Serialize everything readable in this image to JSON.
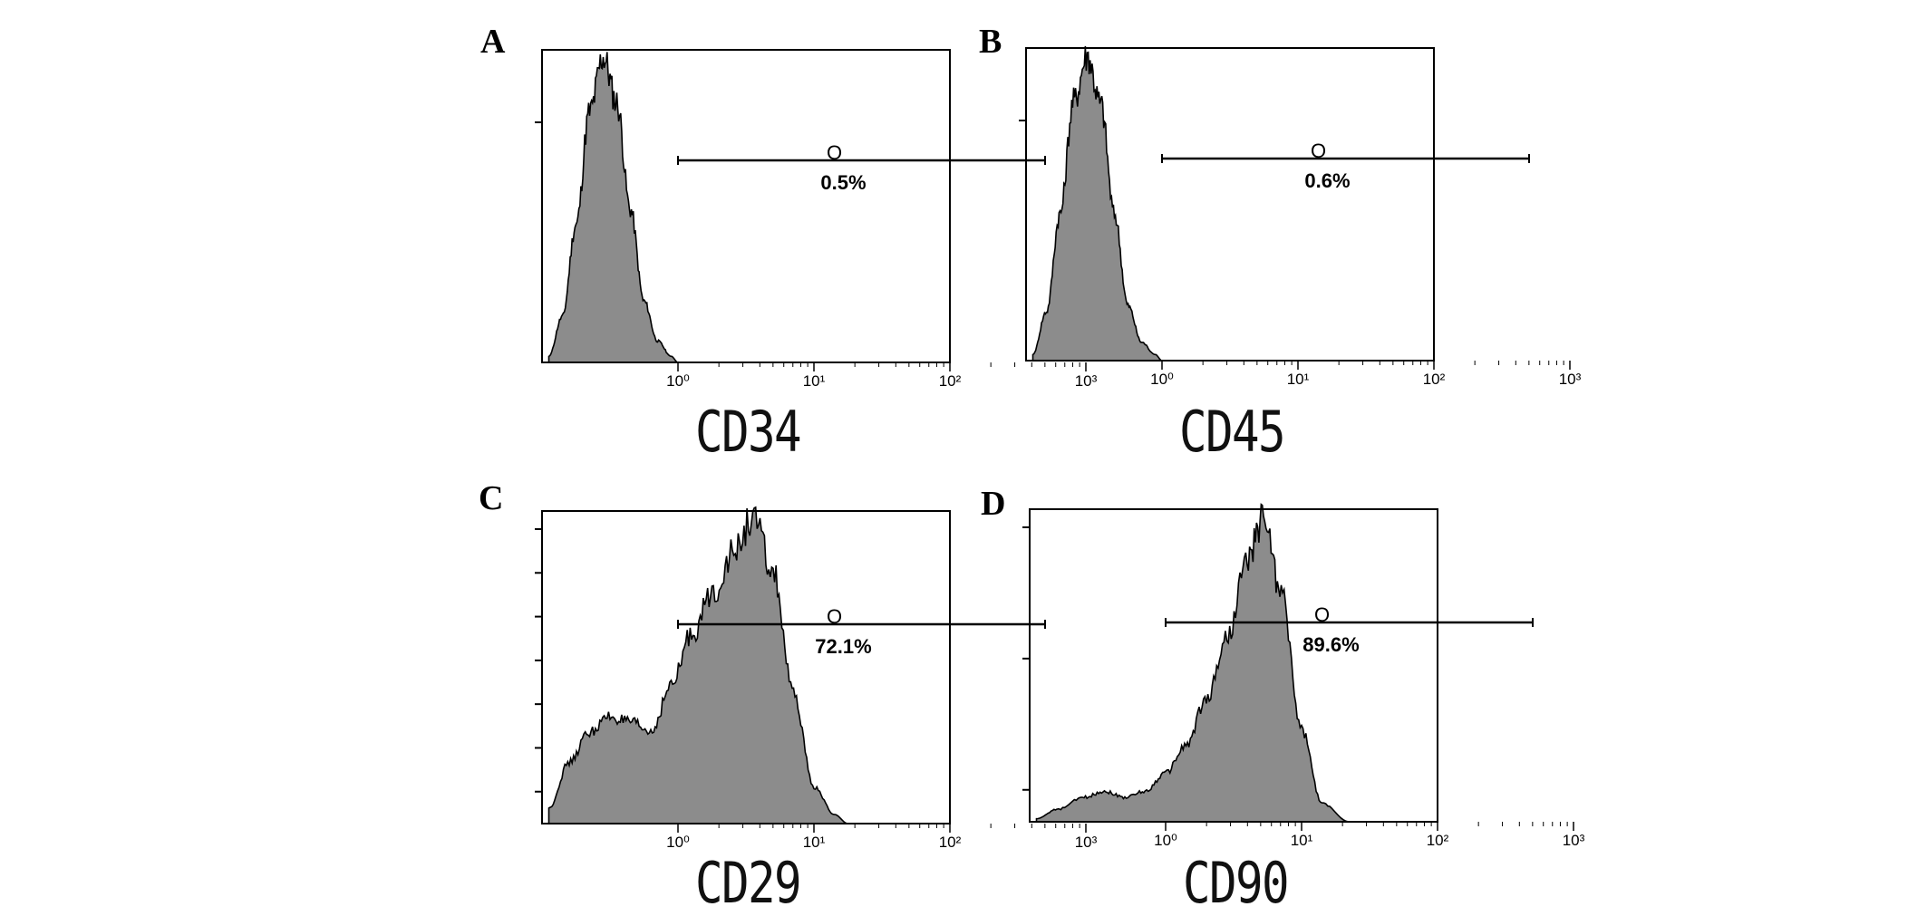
{
  "panels": [
    {
      "letter": "A",
      "xlabel": "CD34",
      "gate_label": "0.5%",
      "gate_marker": "O",
      "x_ticks": [
        "10⁰",
        "10¹",
        "10²",
        "10³"
      ],
      "x_scale": "log",
      "y_tick_count": 1,
      "peak_log": -0.52,
      "gate_range_log": [
        0.0,
        2.7
      ]
    },
    {
      "letter": "B",
      "xlabel": "CD45",
      "gate_label": "0.6%",
      "gate_marker": "O",
      "x_ticks": [
        "10⁰",
        "10¹",
        "10²",
        "10³"
      ],
      "x_scale": "log",
      "y_tick_count": 1,
      "peak_log": -0.52,
      "gate_range_log": [
        0.0,
        2.7
      ]
    },
    {
      "letter": "C",
      "xlabel": "CD29",
      "gate_label": "72.1%",
      "gate_marker": "O",
      "x_ticks": [
        "10⁰",
        "10¹",
        "10²",
        "10³"
      ],
      "x_scale": "log",
      "y_tick_count": 7,
      "peak_log": 0.55,
      "gate_range_log": [
        0.0,
        2.7
      ]
    },
    {
      "letter": "D",
      "xlabel": "CD90",
      "gate_label": "89.6%",
      "gate_marker": "O",
      "x_ticks": [
        "10⁰",
        "10¹",
        "10²",
        "10³"
      ],
      "x_scale": "log",
      "y_tick_count": 3,
      "peak_log": 0.72,
      "gate_range_log": [
        0.0,
        2.7
      ]
    }
  ],
  "chart_data": [
    {
      "type": "area",
      "x_scale": "log",
      "x": [
        -0.95,
        -0.85,
        -0.75,
        -0.65,
        -0.55,
        -0.45,
        -0.35,
        -0.25,
        -0.15,
        -0.05,
        0.0
      ],
      "values": [
        0.02,
        0.15,
        0.45,
        0.82,
        1.0,
        0.85,
        0.5,
        0.2,
        0.07,
        0.02,
        0.0
      ],
      "gate_label": "0.5%",
      "xlabel": "CD34"
    },
    {
      "type": "area",
      "x_scale": "log",
      "x": [
        -0.95,
        -0.85,
        -0.75,
        -0.65,
        -0.55,
        -0.45,
        -0.35,
        -0.25,
        -0.15,
        -0.05,
        0.0
      ],
      "values": [
        0.02,
        0.16,
        0.48,
        0.85,
        1.0,
        0.84,
        0.48,
        0.18,
        0.06,
        0.02,
        0.0
      ],
      "gate_label": "0.6%",
      "xlabel": "CD45"
    },
    {
      "type": "area",
      "x_scale": "log",
      "x": [
        -0.95,
        -0.8,
        -0.65,
        -0.5,
        -0.35,
        -0.2,
        -0.05,
        0.1,
        0.25,
        0.4,
        0.55,
        0.7,
        0.85,
        1.0,
        1.15,
        1.25
      ],
      "values": [
        0.05,
        0.2,
        0.3,
        0.35,
        0.33,
        0.3,
        0.45,
        0.62,
        0.75,
        0.88,
        1.0,
        0.82,
        0.42,
        0.12,
        0.03,
        0.0
      ],
      "gate_label": "72.1%",
      "xlabel": "CD29"
    },
    {
      "type": "area",
      "x_scale": "log",
      "x": [
        -0.95,
        -0.8,
        -0.6,
        -0.45,
        -0.3,
        -0.15,
        0.0,
        0.15,
        0.3,
        0.45,
        0.6,
        0.72,
        0.85,
        1.0,
        1.15,
        1.35
      ],
      "values": [
        0.01,
        0.04,
        0.08,
        0.1,
        0.08,
        0.1,
        0.16,
        0.25,
        0.4,
        0.6,
        0.85,
        1.0,
        0.75,
        0.3,
        0.06,
        0.0
      ],
      "gate_label": "89.6%",
      "xlabel": "CD90"
    }
  ],
  "colors": {
    "fill": "#8c8c8c",
    "stroke": "#000000",
    "axis": "#000000"
  }
}
